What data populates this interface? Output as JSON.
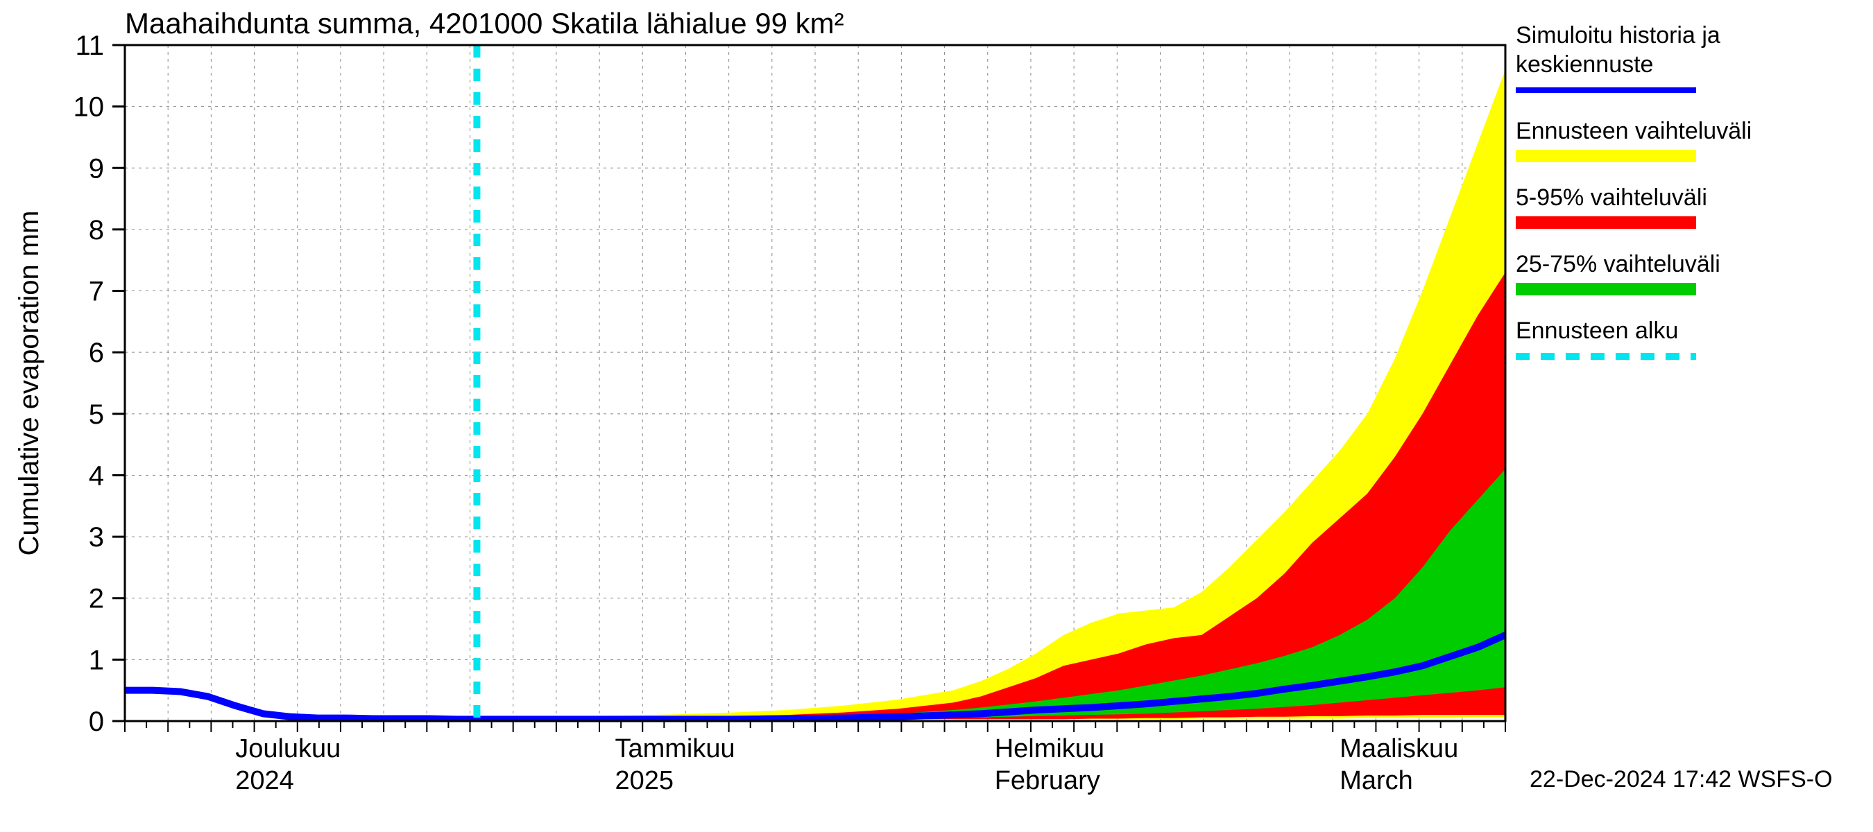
{
  "title": "Maahaihdunta summa, 4201000 Skatila lähialue 99 km²",
  "y_axis": {
    "label": "Cumulative evaporation   mm",
    "min": 0,
    "max": 11,
    "ticks": [
      0,
      1,
      2,
      3,
      4,
      5,
      6,
      7,
      8,
      9,
      10,
      11
    ],
    "label_fontsize": 40
  },
  "x_axis": {
    "months": [
      {
        "fi": "Joulukuu",
        "en": "2024",
        "pos": 0.08
      },
      {
        "fi": "Tammikuu",
        "en": "2025",
        "pos": 0.355
      },
      {
        "fi": "Helmikuu",
        "en": "February",
        "pos": 0.63
      },
      {
        "fi": "Maaliskuu",
        "en": "March",
        "pos": 0.88
      }
    ]
  },
  "footer": "22-Dec-2024 17:42 WSFS-O",
  "legend": {
    "items": [
      {
        "label1": "Simuloitu historia ja",
        "label2": "keskiennuste",
        "type": "line",
        "color": "#0000ff",
        "width": 8
      },
      {
        "label1": "Ennusteen vaihteluväli",
        "type": "band",
        "color": "#ffff00"
      },
      {
        "label1": "5-95% vaihteluväli",
        "type": "band",
        "color": "#ff0000"
      },
      {
        "label1": "25-75% vaihteluväli",
        "type": "band",
        "color": "#00cc00"
      },
      {
        "label1": "Ennusteen alku",
        "type": "dash",
        "color": "#00e5ee",
        "width": 10
      }
    ]
  },
  "plot": {
    "bg": "#ffffff",
    "grid_color": "#888888",
    "grid_dash": "4,6",
    "forecast_start_x": 0.255,
    "x_samples": [
      0.0,
      0.02,
      0.04,
      0.06,
      0.08,
      0.1,
      0.12,
      0.14,
      0.16,
      0.18,
      0.2,
      0.22,
      0.24,
      0.255,
      0.28,
      0.32,
      0.36,
      0.4,
      0.44,
      0.48,
      0.52,
      0.56,
      0.6,
      0.62,
      0.64,
      0.66,
      0.68,
      0.7,
      0.72,
      0.74,
      0.76,
      0.78,
      0.8,
      0.82,
      0.84,
      0.86,
      0.88,
      0.9,
      0.92,
      0.94,
      0.96,
      0.98,
      1.0
    ],
    "blue": [
      0.5,
      0.5,
      0.48,
      0.4,
      0.25,
      0.12,
      0.07,
      0.05,
      0.05,
      0.04,
      0.04,
      0.04,
      0.03,
      0.03,
      0.03,
      0.03,
      0.03,
      0.03,
      0.03,
      0.04,
      0.05,
      0.07,
      0.1,
      0.12,
      0.15,
      0.18,
      0.2,
      0.22,
      0.25,
      0.28,
      0.32,
      0.36,
      0.4,
      0.45,
      0.52,
      0.58,
      0.65,
      0.72,
      0.8,
      0.9,
      1.05,
      1.2,
      1.4
    ],
    "green_lo": [
      null,
      null,
      null,
      null,
      null,
      null,
      null,
      null,
      null,
      null,
      null,
      null,
      null,
      0.03,
      0.03,
      0.03,
      0.03,
      0.03,
      0.03,
      0.03,
      0.03,
      0.04,
      0.05,
      0.06,
      0.07,
      0.08,
      0.09,
      0.1,
      0.11,
      0.12,
      0.14,
      0.16,
      0.18,
      0.2,
      0.23,
      0.26,
      0.3,
      0.34,
      0.38,
      0.42,
      0.46,
      0.5,
      0.55
    ],
    "green_hi": [
      null,
      null,
      null,
      null,
      null,
      null,
      null,
      null,
      null,
      null,
      null,
      null,
      null,
      0.03,
      0.03,
      0.03,
      0.04,
      0.04,
      0.05,
      0.06,
      0.08,
      0.12,
      0.18,
      0.22,
      0.27,
      0.32,
      0.38,
      0.44,
      0.5,
      0.58,
      0.66,
      0.74,
      0.84,
      0.94,
      1.06,
      1.2,
      1.4,
      1.65,
      2.0,
      2.5,
      3.1,
      3.6,
      4.1
    ],
    "red_lo": [
      null,
      null,
      null,
      null,
      null,
      null,
      null,
      null,
      null,
      null,
      null,
      null,
      null,
      0.03,
      0.03,
      0.03,
      0.03,
      0.03,
      0.03,
      0.03,
      0.03,
      0.03,
      0.03,
      0.03,
      0.03,
      0.03,
      0.03,
      0.04,
      0.04,
      0.05,
      0.05,
      0.06,
      0.06,
      0.07,
      0.07,
      0.08,
      0.08,
      0.09,
      0.09,
      0.1,
      0.1,
      0.1,
      0.1
    ],
    "red_hi": [
      null,
      null,
      null,
      null,
      null,
      null,
      null,
      null,
      null,
      null,
      null,
      null,
      null,
      0.03,
      0.04,
      0.05,
      0.06,
      0.07,
      0.08,
      0.1,
      0.14,
      0.2,
      0.3,
      0.4,
      0.55,
      0.7,
      0.9,
      1.0,
      1.1,
      1.25,
      1.35,
      1.4,
      1.7,
      2.0,
      2.4,
      2.9,
      3.3,
      3.7,
      4.3,
      5.0,
      5.8,
      6.6,
      7.3
    ],
    "yel_lo": [
      null,
      null,
      null,
      null,
      null,
      null,
      null,
      null,
      null,
      null,
      null,
      null,
      null,
      0.03,
      0.03,
      0.03,
      0.03,
      0.03,
      0.03,
      0.03,
      0.03,
      0.03,
      0.03,
      0.03,
      0.03,
      0.03,
      0.03,
      0.03,
      0.03,
      0.03,
      0.03,
      0.04,
      0.04,
      0.04,
      0.04,
      0.04,
      0.04,
      0.05,
      0.05,
      0.05,
      0.05,
      0.06,
      0.06
    ],
    "yel_hi": [
      null,
      null,
      null,
      null,
      null,
      null,
      null,
      null,
      null,
      null,
      null,
      null,
      null,
      0.03,
      0.05,
      0.07,
      0.09,
      0.11,
      0.14,
      0.18,
      0.25,
      0.35,
      0.5,
      0.65,
      0.85,
      1.1,
      1.4,
      1.6,
      1.75,
      1.8,
      1.85,
      2.1,
      2.5,
      2.95,
      3.4,
      3.9,
      4.4,
      5.0,
      5.9,
      7.0,
      8.2,
      9.4,
      10.6
    ]
  },
  "colors": {
    "blue": "#0000ff",
    "green": "#00cc00",
    "red": "#ff0000",
    "yellow": "#ffff00",
    "cyan": "#00e5ee"
  }
}
